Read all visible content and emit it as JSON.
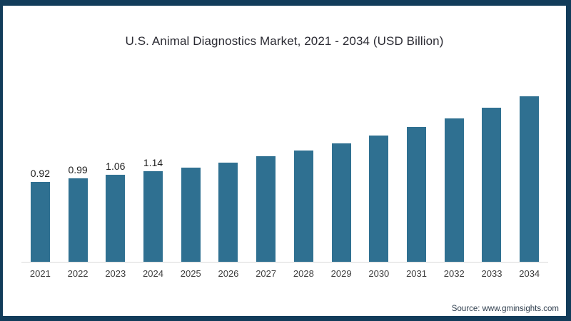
{
  "frame": {
    "border_color": "#123c5a",
    "background_color": "#ffffff"
  },
  "title": "U.S. Animal Diagnostics Market, 2021 - 2034 (USD Billion)",
  "source": "Source: www.gminsights.com",
  "chart_data": {
    "type": "bar",
    "title": "U.S. Animal Diagnostics Market, 2021 - 2034 (USD Billion)",
    "categories": [
      "2021",
      "2022",
      "2023",
      "2024",
      "2025",
      "2026",
      "2027",
      "2028",
      "2029",
      "2030",
      "2031",
      "2032",
      "2033",
      "2034"
    ],
    "values": [
      0.92,
      0.99,
      1.06,
      1.14,
      1.21,
      1.31,
      1.43,
      1.54,
      1.69,
      1.84,
      2.01,
      2.18,
      2.39,
      2.61
    ],
    "data_labels": [
      "0.92",
      "0.99",
      "1.06",
      "1.14",
      "",
      "",
      "",
      "",
      "",
      "",
      "",
      "",
      "",
      ""
    ],
    "xlabel": "",
    "ylabel": "",
    "y_axis_visible": false,
    "grid": "off",
    "legend": "none",
    "bar_color": "#2f7091",
    "axis_line_color": "#d8d8d8"
  }
}
